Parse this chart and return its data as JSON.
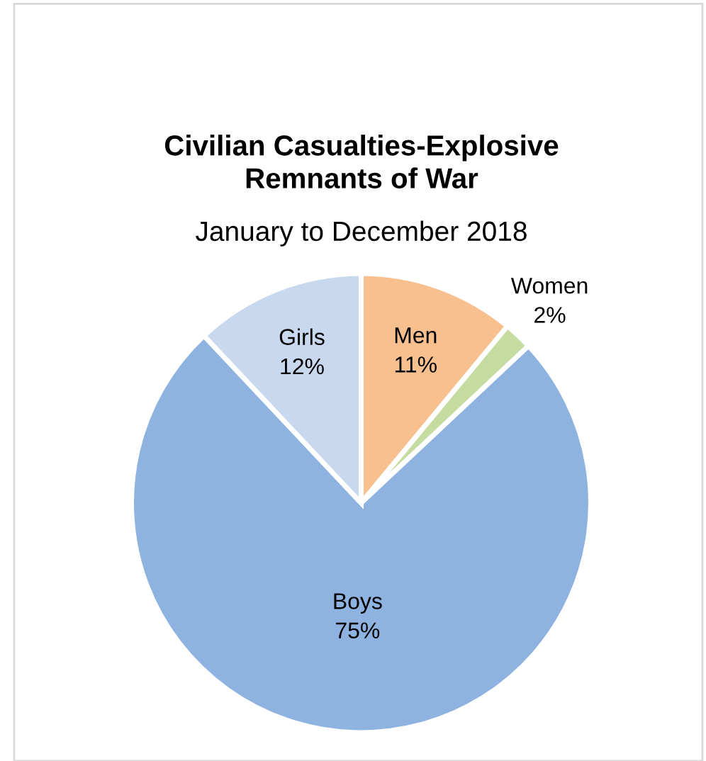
{
  "chart_data": {
    "type": "pie",
    "title": "Civilian Casualties-Explosive Remnants of War",
    "subtitle": "January to December 2018",
    "categories": [
      "Men",
      "Women",
      "Boys",
      "Girls"
    ],
    "values": [
      11,
      2,
      75,
      12
    ],
    "colors": [
      "#f8bf8f",
      "#c5dba0",
      "#8eb3e0",
      "#c7d8ef"
    ],
    "value_labels": [
      "11%",
      "2%",
      "75%",
      "12%"
    ]
  }
}
